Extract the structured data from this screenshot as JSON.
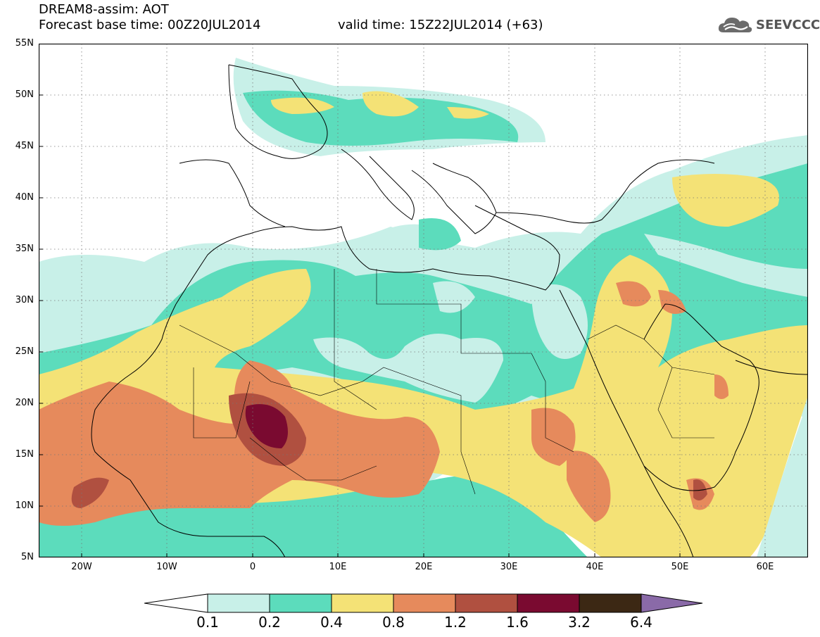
{
  "header": {
    "title_line1": "DREAM8-assim: AOT",
    "title_line2": "Forecast base time: 00Z20JUL2014",
    "valid_time": "valid time: 15Z22JUL2014 (+63)",
    "logo_text": "SEEVCCC",
    "logo_icon": "cloud-icon"
  },
  "map": {
    "lat_range": [
      5,
      55
    ],
    "lon_range": [
      -25,
      65
    ],
    "lat_labels": [
      "55N",
      "50N",
      "45N",
      "40N",
      "35N",
      "30N",
      "25N",
      "20N",
      "15N",
      "10N",
      "5N"
    ],
    "lat_values": [
      55,
      50,
      45,
      40,
      35,
      30,
      25,
      20,
      15,
      10,
      5
    ],
    "lon_labels": [
      "20W",
      "10W",
      "0",
      "10E",
      "20E",
      "30E",
      "40E",
      "50E",
      "60E"
    ],
    "lon_values": [
      -20,
      -10,
      0,
      10,
      20,
      30,
      40,
      50,
      60
    ],
    "grid": "dotted"
  },
  "legend": {
    "labels": [
      "0.1",
      "0.2",
      "0.4",
      "0.8",
      "1.2",
      "1.6",
      "3.2",
      "6.4"
    ],
    "colors": [
      "#ffffff",
      "#c8f0e8",
      "#5cdcbc",
      "#f4e276",
      "#e68a5c",
      "#b05040",
      "#7a0a30",
      "#3c2814",
      "#8a6aa8"
    ]
  }
}
